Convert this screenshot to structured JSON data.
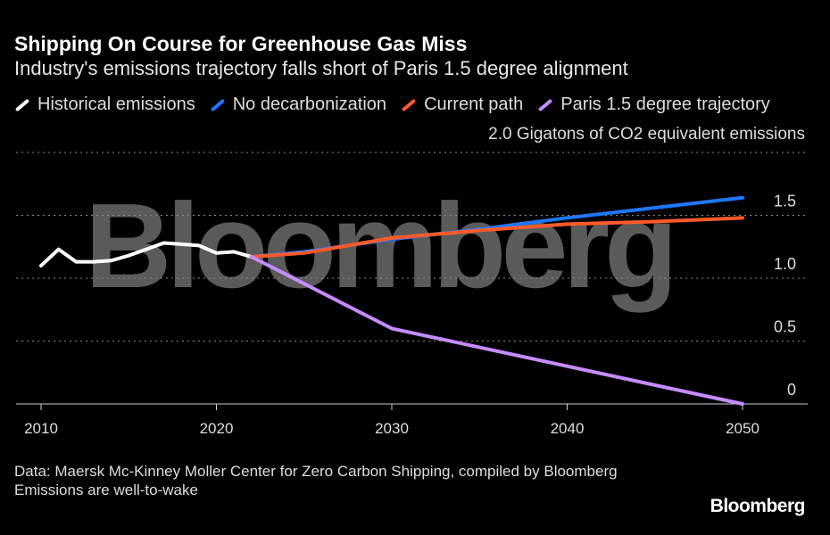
{
  "chart_data": {
    "type": "line",
    "title": "Shipping On Course for Greenhouse Gas Miss",
    "subtitle": "Industry's emissions trajectory falls short of Paris 1.5 degree alignment",
    "ylabel": "Gigatons of CO2 equivalent emissions",
    "xlim": [
      2010,
      2050
    ],
    "ylim": [
      0,
      2.0
    ],
    "xticks": [
      "2010",
      "2020",
      "2030",
      "2040",
      "2050"
    ],
    "yticks": [
      "0",
      "0.5",
      "1.0",
      "1.5",
      "2.0"
    ],
    "grid": true,
    "legend_position": "top",
    "series": [
      {
        "name": "Historical emissions",
        "color": "#ffffff",
        "x": [
          2010,
          2011,
          2012,
          2013,
          2014,
          2015,
          2016,
          2017,
          2018,
          2019,
          2020,
          2021,
          2022
        ],
        "y": [
          1.1,
          1.23,
          1.13,
          1.13,
          1.14,
          1.18,
          1.23,
          1.28,
          1.27,
          1.26,
          1.2,
          1.21,
          1.17
        ]
      },
      {
        "name": "No decarbonization",
        "color": "#1f77ff",
        "x": [
          2022,
          2025,
          2030,
          2035,
          2040,
          2045,
          2050
        ],
        "y": [
          1.17,
          1.21,
          1.31,
          1.39,
          1.48,
          1.56,
          1.64
        ]
      },
      {
        "name": "Current path",
        "color": "#ff5a2c",
        "x": [
          2022,
          2025,
          2030,
          2035,
          2040,
          2045,
          2050
        ],
        "y": [
          1.17,
          1.2,
          1.32,
          1.38,
          1.43,
          1.45,
          1.48
        ]
      },
      {
        "name": "Paris 1.5 degree trajectory",
        "color": "#c58cff",
        "x": [
          2022,
          2030,
          2040,
          2050
        ],
        "y": [
          1.17,
          0.6,
          0.3,
          0.0
        ]
      }
    ]
  },
  "footer": {
    "source": "Data: Maersk Mc-Kinney Moller Center for Zero Carbon Shipping, compiled by Bloomberg",
    "note": "Emissions are well-to-wake"
  },
  "brand": "Bloomberg",
  "watermark": "Bloomberg"
}
